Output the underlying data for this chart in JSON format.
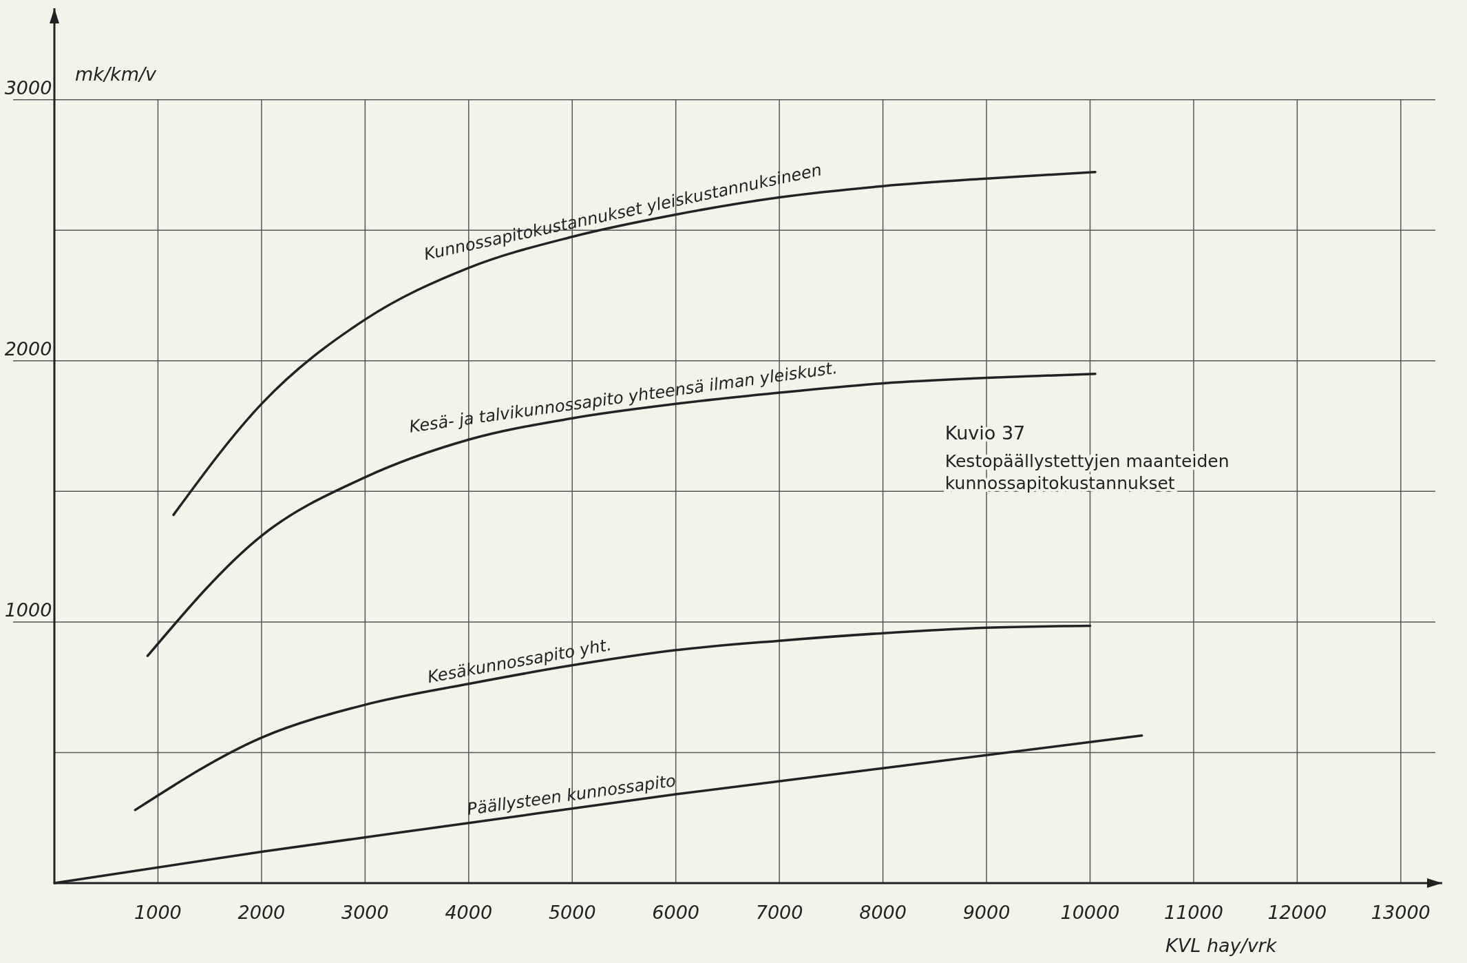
{
  "chart_data": {
    "type": "line",
    "title": "Kuvio 37",
    "subtitle": "Kestopäällystettyjen maanteiden kunnossapitokustannukset",
    "xlabel": "KVL  hay/vrk",
    "ylabel": "mk/km/v",
    "xlim": [
      0,
      13400
    ],
    "xticks": [
      1000,
      2000,
      3000,
      4000,
      5000,
      6000,
      7000,
      8000,
      9000,
      10000,
      11000,
      12000,
      13000
    ],
    "ylim": [
      0,
      3350
    ],
    "yticks": [
      {
        "value": 500,
        "label": null
      },
      1000,
      {
        "value": 1500,
        "label": null
      },
      2000,
      {
        "value": 2500,
        "label": null
      },
      3000
    ],
    "grid": true,
    "marker": "none",
    "line_style": "solid",
    "series": [
      {
        "name": "Kunnossapitokustannukset yleiskustannuksineen",
        "color": "#222222",
        "x": [
          1150,
          2000,
          3000,
          4000,
          5000,
          6000,
          7000,
          8000,
          9000,
          10050
        ],
        "values": [
          1410,
          1835,
          2158,
          2356,
          2475,
          2560,
          2626,
          2669,
          2698,
          2723
        ]
      },
      {
        "name": "Kesä- ja talvikunnossapito yhteensä ilman yleiskust.",
        "color": "#222222",
        "x": [
          900,
          2000,
          3000,
          4000,
          5000,
          6000,
          7000,
          8000,
          9000,
          10050
        ],
        "values": [
          870,
          1330,
          1554,
          1698,
          1780,
          1835,
          1878,
          1914,
          1935,
          1950
        ]
      },
      {
        "name": "Kesäkunnossapito yht.",
        "color": "#222222",
        "x": [
          780,
          2000,
          3000,
          4000,
          5000,
          6000,
          7000,
          8000,
          9000,
          10000
        ],
        "values": [
          280,
          557,
          683,
          763,
          834,
          892,
          928,
          957,
          978,
          985
        ]
      },
      {
        "name": "Päällysteen kunnossapito",
        "color": "#222222",
        "x": [
          0,
          2000,
          4000,
          6000,
          8000,
          10500
        ],
        "values": [
          0,
          120,
          230,
          340,
          440,
          565
        ]
      }
    ]
  }
}
